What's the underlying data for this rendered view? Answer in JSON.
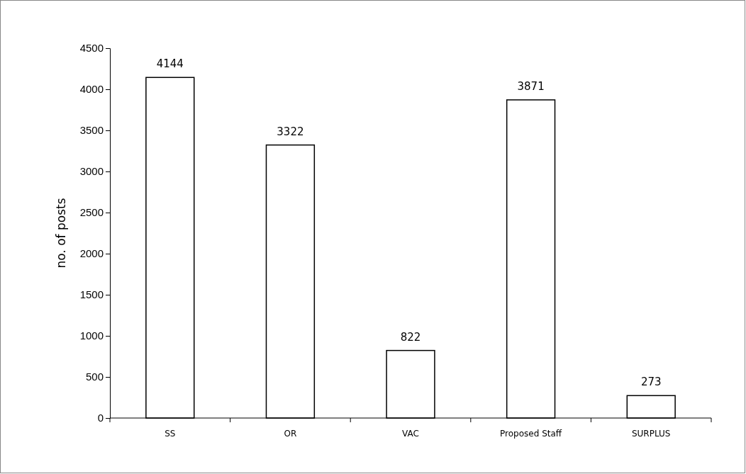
{
  "chart_data": {
    "type": "bar",
    "ylabel": "no. of posts",
    "categories": [
      "SS",
      "OR",
      "VAC",
      "Proposed Staff",
      "SURPLUS"
    ],
    "values": [
      4144,
      3322,
      822,
      3871,
      273
    ],
    "color": "#ffffff",
    "ylim": [
      0,
      4500
    ],
    "yticks": [
      0,
      500,
      1000,
      1500,
      2000,
      2500,
      3000,
      3500,
      4000,
      4500
    ],
    "grid": false,
    "data_labels": true
  }
}
